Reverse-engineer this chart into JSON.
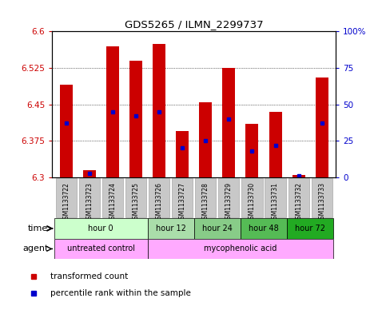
{
  "title": "GDS5265 / ILMN_2299737",
  "samples": [
    "GSM1133722",
    "GSM1133723",
    "GSM1133724",
    "GSM1133725",
    "GSM1133726",
    "GSM1133727",
    "GSM1133728",
    "GSM1133729",
    "GSM1133730",
    "GSM1133731",
    "GSM1133732",
    "GSM1133733"
  ],
  "bar_top": [
    6.49,
    6.315,
    6.57,
    6.54,
    6.575,
    6.395,
    6.455,
    6.525,
    6.41,
    6.435,
    6.305,
    6.505
  ],
  "bar_bottom": 6.3,
  "percentile": [
    37,
    3,
    45,
    42,
    45,
    20,
    25,
    40,
    18,
    22,
    1,
    37
  ],
  "ylim_left": [
    6.3,
    6.6
  ],
  "ylim_right": [
    0,
    100
  ],
  "yticks_left": [
    6.3,
    6.375,
    6.45,
    6.525,
    6.6
  ],
  "yticks_right": [
    0,
    25,
    50,
    75,
    100
  ],
  "ytick_labels_left": [
    "6.3",
    "6.375",
    "6.45",
    "6.525",
    "6.6"
  ],
  "ytick_labels_right": [
    "0",
    "25",
    "50",
    "75",
    "100%"
  ],
  "bar_color": "#cc0000",
  "dot_color": "#0000cc",
  "bg_color": "#ffffff",
  "plot_bg": "#ffffff",
  "time_groups": [
    {
      "label": "hour 0",
      "start": 0,
      "end": 4,
      "color": "#ccffcc"
    },
    {
      "label": "hour 12",
      "start": 4,
      "end": 6,
      "color": "#aaddaa"
    },
    {
      "label": "hour 24",
      "start": 6,
      "end": 8,
      "color": "#88cc88"
    },
    {
      "label": "hour 48",
      "start": 8,
      "end": 10,
      "color": "#55bb55"
    },
    {
      "label": "hour 72",
      "start": 10,
      "end": 12,
      "color": "#22aa22"
    }
  ],
  "agent_groups": [
    {
      "label": "untreated control",
      "start": 0,
      "end": 4,
      "color": "#ffaaff"
    },
    {
      "label": "mycophenolic acid",
      "start": 4,
      "end": 12,
      "color": "#ffaaff"
    }
  ],
  "legend_items": [
    {
      "color": "#cc0000",
      "label": "transformed count"
    },
    {
      "color": "#0000cc",
      "label": "percentile rank within the sample"
    }
  ],
  "left_axis_color": "#cc0000",
  "right_axis_color": "#0000cc",
  "xtick_bg": "#c8c8c8"
}
